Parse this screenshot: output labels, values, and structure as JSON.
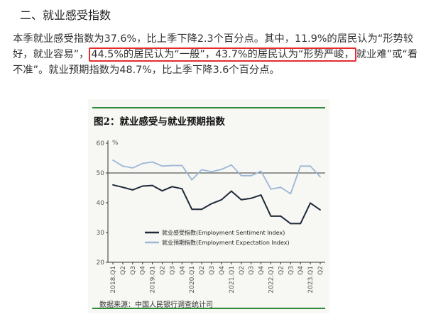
{
  "section": {
    "title": "二、就业感受指数"
  },
  "paragraph": {
    "part1": "本季就业感受指数为37.6%，比上季下降2.3个百分点。其中，11.9%的居民认为“形势较好，就业容易”，",
    "highlight": "44.5%的居民认为“一般”，43.7%的居民认为“形势严峻，",
    "part2": "就业难”或“看不准”。就业预期指数为48.7%，比上季下降3.6个百分点。"
  },
  "highlight_color": "#e52b2b",
  "figure": {
    "title": "图2：就业感受与就业预期指数",
    "source": "数据来源：中国人民银行调查统计司",
    "accent_line_color": "#2e8b3a"
  },
  "chart_data": {
    "type": "line",
    "ylabel": "%",
    "ylim": [
      20,
      60
    ],
    "yticks": [
      20,
      30,
      40,
      50,
      60
    ],
    "reference_line": 50,
    "grid": false,
    "legend_position": "bottom-left",
    "x": [
      "2018Q1",
      "2018Q2",
      "2018Q3",
      "2018Q4",
      "2019Q1",
      "2019Q2",
      "2019Q3",
      "2019Q4",
      "2020Q1",
      "2020Q2",
      "2020Q3",
      "2020Q4",
      "2021Q1",
      "2021Q2",
      "2021Q3",
      "2021Q4",
      "2022Q1",
      "2022Q2",
      "2022Q3",
      "2022Q4",
      "2023Q1",
      "2023Q2"
    ],
    "xtick_labels": [
      "2018.Q1",
      "Q2",
      "Q3",
      "Q4",
      "2019.Q1",
      "Q2",
      "Q3",
      "Q4",
      "2020.Q1",
      "Q2",
      "Q3",
      "Q4",
      "2021.Q1",
      "Q2",
      "Q3",
      "Q4",
      "2022.Q1",
      "Q2",
      "Q3",
      "Q4",
      "2023.Q1",
      "Q2"
    ],
    "series": [
      {
        "name": "就业感受指数(Employment Sentiment Index)",
        "color": "#1f2a3a",
        "values": [
          46.0,
          45.2,
          44.3,
          45.6,
          45.8,
          44.0,
          45.4,
          44.7,
          37.8,
          37.8,
          39.7,
          41.0,
          43.9,
          41.0,
          41.5,
          42.6,
          35.5,
          35.5,
          33.0,
          33.0,
          39.9,
          37.6
        ]
      },
      {
        "name": "就业预期指数(Employment Expectation Index)",
        "color": "#9cb7d6",
        "values": [
          54.3,
          52.3,
          51.7,
          53.2,
          53.7,
          52.3,
          52.5,
          52.5,
          47.7,
          51.1,
          50.4,
          51.2,
          52.7,
          49.1,
          49.1,
          50.6,
          44.6,
          45.2,
          43.0,
          52.3,
          52.3,
          48.7
        ]
      }
    ]
  }
}
